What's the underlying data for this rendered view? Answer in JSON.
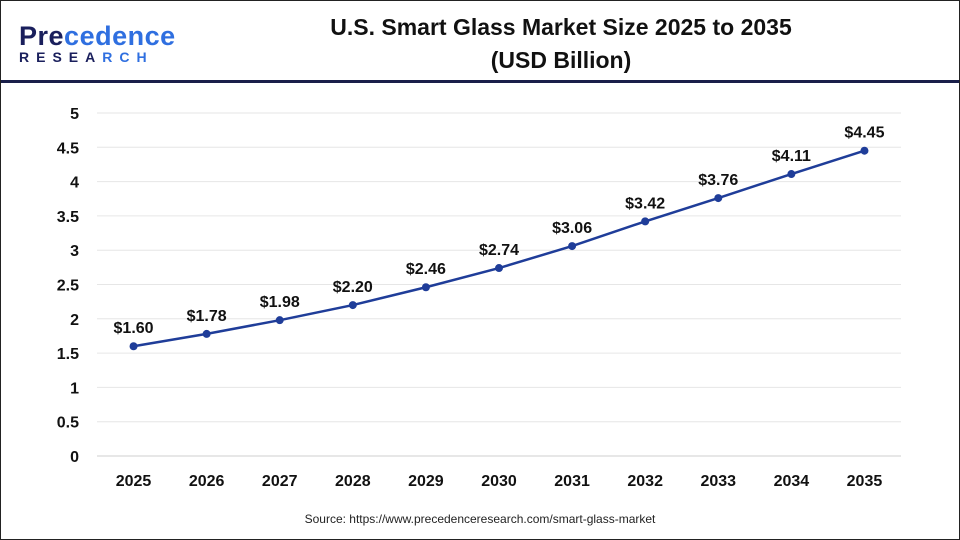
{
  "logo": {
    "line1": "Precedence",
    "line2": "RESEARCH"
  },
  "header": {
    "title_line1": "U.S. Smart Glass Market Size 2025 to 2035",
    "title_line2": "(USD Billion)"
  },
  "source": "Source: https://www.precedenceresearch.com/smart-glass-market",
  "chart_data": {
    "type": "line",
    "title": "U.S. Smart Glass Market Size 2025 to 2035 (USD Billion)",
    "categories": [
      "2025",
      "2026",
      "2027",
      "2028",
      "2029",
      "2030",
      "2031",
      "2032",
      "2033",
      "2034",
      "2035"
    ],
    "values": [
      1.6,
      1.78,
      1.98,
      2.2,
      2.46,
      2.74,
      3.06,
      3.42,
      3.76,
      4.11,
      4.45
    ],
    "data_labels": [
      "$1.60",
      "$1.78",
      "$1.98",
      "$2.20",
      "$2.46",
      "$2.74",
      "$3.06",
      "$3.42",
      "$3.76",
      "$4.11",
      "$4.45"
    ],
    "yticks": [
      "0",
      "0.5",
      "1",
      "1.5",
      "2",
      "2.5",
      "3",
      "3.5",
      "4",
      "4.5",
      "5"
    ],
    "ylim": [
      0,
      5
    ],
    "grid": true,
    "line_color": "#1f3d99"
  }
}
